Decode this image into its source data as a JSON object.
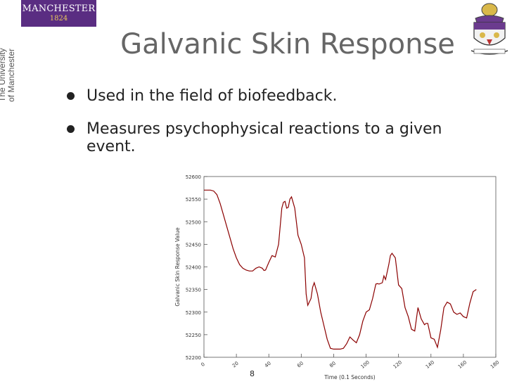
{
  "logo": {
    "name": "MANCHESTER",
    "year": "1824"
  },
  "university_label": {
    "line1": "The University",
    "line2": "of Manchester"
  },
  "slide": {
    "title": "Galvanic Skin Response",
    "bullets": [
      "Used in the field of biofeedback.",
      "Measures psychophysical reactions to a given event."
    ],
    "page_number": "8"
  },
  "colors": {
    "logo_bg": "#5a2d82",
    "logo_year": "#e7c75a",
    "series": "#8b0000"
  },
  "chart_data": {
    "type": "line",
    "xlabel": "Time (0.1 Seconds)",
    "ylabel": "Galvanic Skin Response Value",
    "xlim": [
      0,
      180
    ],
    "ylim": [
      52200,
      52600
    ],
    "xticks": [
      0,
      20,
      40,
      60,
      80,
      100,
      120,
      140,
      160,
      180
    ],
    "yticks": [
      52200,
      52250,
      52300,
      52350,
      52400,
      52450,
      52500,
      52550,
      52600
    ],
    "grid": false,
    "series": [
      {
        "x": [
          0,
          2,
          4,
          6,
          8,
          10,
          12,
          14,
          16,
          18,
          20,
          22,
          24,
          26,
          28,
          30,
          32,
          34,
          36,
          37,
          38,
          40,
          42,
          44,
          46,
          48,
          49,
          50,
          51,
          52,
          53,
          54,
          56,
          58,
          60,
          62,
          63,
          64,
          66,
          67,
          68,
          70,
          72,
          74,
          76,
          78,
          80,
          82,
          84,
          86,
          88,
          90,
          92,
          94,
          96,
          98,
          100,
          102,
          104,
          106,
          107,
          108,
          110,
          111,
          112,
          114,
          115,
          116,
          118,
          120,
          122,
          124,
          126,
          128,
          130,
          132,
          134,
          136,
          137,
          138,
          140,
          142,
          144,
          146,
          148,
          150,
          152,
          154,
          156,
          158,
          160,
          162,
          164,
          166,
          168
        ],
        "values": [
          52570,
          52570,
          52570,
          52568,
          52560,
          52540,
          52515,
          52490,
          52465,
          52440,
          52420,
          52405,
          52397,
          52393,
          52391,
          52391,
          52397,
          52400,
          52397,
          52392,
          52393,
          52410,
          52425,
          52422,
          52450,
          52530,
          52543,
          52545,
          52530,
          52532,
          52550,
          52555,
          52530,
          52470,
          52450,
          52420,
          52340,
          52315,
          52330,
          52355,
          52365,
          52340,
          52300,
          52270,
          52240,
          52220,
          52218,
          52218,
          52218,
          52220,
          52230,
          52245,
          52238,
          52232,
          52250,
          52280,
          52300,
          52305,
          52330,
          52362,
          52363,
          52362,
          52365,
          52380,
          52372,
          52405,
          52425,
          52430,
          52420,
          52360,
          52352,
          52310,
          52290,
          52262,
          52258,
          52310,
          52285,
          52272,
          52275,
          52275,
          52243,
          52240,
          52222,
          52260,
          52310,
          52322,
          52318,
          52300,
          52295,
          52298,
          52290,
          52287,
          52320,
          52345,
          52350
        ]
      }
    ]
  }
}
